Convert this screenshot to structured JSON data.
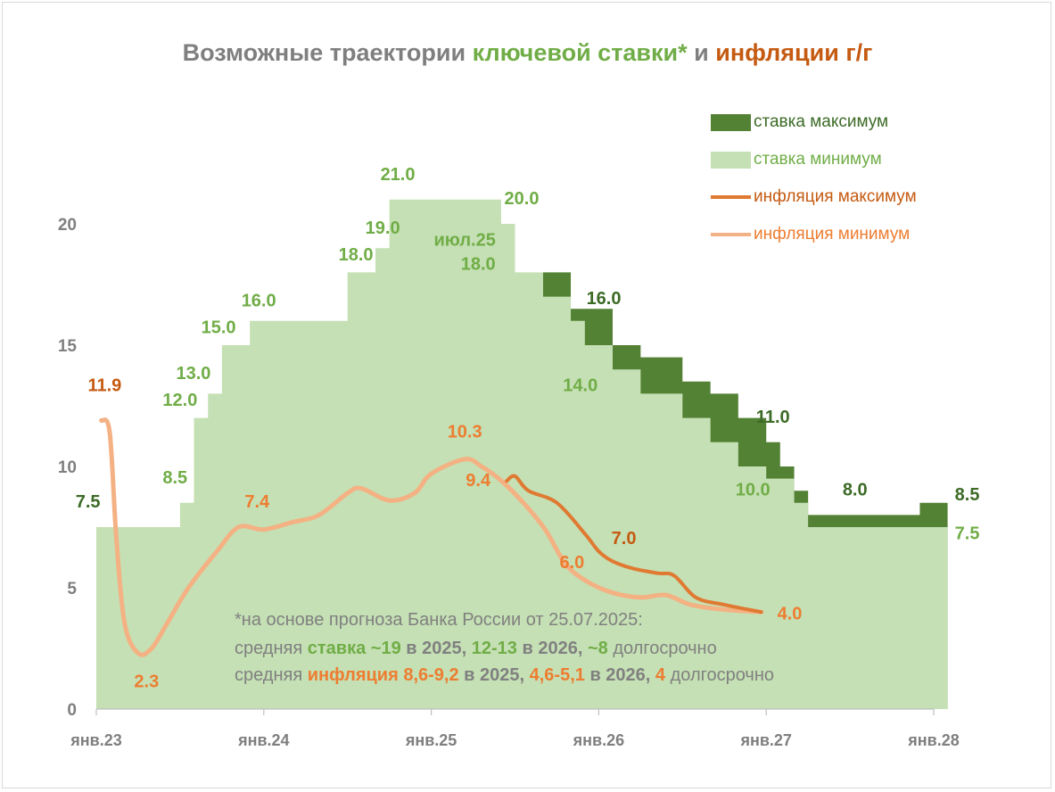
{
  "colors": {
    "rate_max": "#548235",
    "rate_min": "#c5e0b4",
    "infl_max": "#e07a32",
    "infl_min": "#f4b183",
    "label_green": "#70ad47",
    "label_dkgreen": "#3c6b26",
    "label_orange": "#ed7d31",
    "label_dkorange": "#c55a11",
    "axis": "#7f7f7f"
  },
  "title": {
    "part1": "Возможные траектории",
    "part2": "ключевой ставки*",
    "part3": "и",
    "part4": "инфляции г/г"
  },
  "legend": [
    {
      "label": "ставка максимум",
      "kind": "rect",
      "color": "#548235",
      "text_color": "#3c6b26"
    },
    {
      "label": "ставка минимум",
      "kind": "rect",
      "color": "#c5e0b4",
      "text_color": "#70ad47"
    },
    {
      "label": "инфляция максимум",
      "kind": "line",
      "color": "#e07a32",
      "text_color": "#c55a11"
    },
    {
      "label": "инфляция минимум",
      "kind": "line",
      "color": "#f4b183",
      "text_color": "#ed7d31"
    }
  ],
  "note": {
    "line1": "*на основе прогноза Банка России от 25.07.2025:",
    "l2_a": "средняя",
    "l2_b": "ставка",
    "l2_c": "~19",
    "l2_d": "в 2025,",
    "l2_e": "12-13",
    "l2_f": "в 2026,",
    "l2_g": "~8",
    "l2_h": "долгосрочно",
    "l3_a": "средняя",
    "l3_b": "инфляция",
    "l3_c": "8,6-9,2",
    "l3_d": "в 2025,",
    "l3_e": "4,6-5,1",
    "l3_f": "в 2026,",
    "l3_g": "4",
    "l3_h": "долгосрочно"
  },
  "chart_data": {
    "type": "area",
    "title": "Возможные траектории ключевой ставки* и инфляции г/г",
    "x_range": [
      2023.0,
      2028.0
    ],
    "ylim": [
      0,
      20
    ],
    "yticks": [
      0,
      5,
      10,
      15,
      20
    ],
    "xticks": [
      {
        "x": 2023.0,
        "label": "янв.23"
      },
      {
        "x": 2024.0,
        "label": "янв.24"
      },
      {
        "x": 2025.0,
        "label": "янв.25"
      },
      {
        "x": 2026.0,
        "label": "янв.26"
      },
      {
        "x": 2027.0,
        "label": "янв.27"
      },
      {
        "x": 2028.0,
        "label": "янв.28"
      }
    ],
    "series": [
      {
        "name": "ставка минимум",
        "kind": "step",
        "points": [
          [
            2023.0,
            7.5
          ],
          [
            2023.5,
            8.5
          ],
          [
            2023.583,
            12.0
          ],
          [
            2023.667,
            13.0
          ],
          [
            2023.75,
            15.0
          ],
          [
            2023.917,
            16.0
          ],
          [
            2024.5,
            18.0
          ],
          [
            2024.667,
            19.0
          ],
          [
            2024.75,
            21.0
          ],
          [
            2025.417,
            20.0
          ],
          [
            2025.5,
            18.0
          ],
          [
            2025.667,
            17.0
          ],
          [
            2025.833,
            16.0
          ],
          [
            2025.917,
            15.0
          ],
          [
            2026.083,
            14.0
          ],
          [
            2026.25,
            13.0
          ],
          [
            2026.5,
            12.0
          ],
          [
            2026.667,
            11.0
          ],
          [
            2026.833,
            10.0
          ],
          [
            2027.0,
            9.5
          ],
          [
            2027.167,
            8.5
          ],
          [
            2027.25,
            7.5
          ],
          [
            2027.917,
            7.5
          ],
          [
            2028.083,
            7.5
          ]
        ]
      },
      {
        "name": "ставка максимум",
        "kind": "step",
        "points": [
          [
            2025.667,
            18.0
          ],
          [
            2025.833,
            16.5
          ],
          [
            2025.917,
            16.5
          ],
          [
            2026.083,
            15.0
          ],
          [
            2026.25,
            14.5
          ],
          [
            2026.5,
            13.5
          ],
          [
            2026.667,
            13.0
          ],
          [
            2026.833,
            12.0
          ],
          [
            2027.0,
            11.0
          ],
          [
            2027.083,
            10.0
          ],
          [
            2027.167,
            9.0
          ],
          [
            2027.25,
            8.0
          ],
          [
            2027.917,
            8.5
          ],
          [
            2028.083,
            8.5
          ]
        ]
      },
      {
        "name": "инфляция минимум",
        "kind": "line",
        "points": [
          [
            2023.03,
            11.9
          ],
          [
            2023.08,
            11.4
          ],
          [
            2023.12,
            7.0
          ],
          [
            2023.17,
            3.5
          ],
          [
            2023.25,
            2.3
          ],
          [
            2023.33,
            2.5
          ],
          [
            2023.42,
            3.5
          ],
          [
            2023.55,
            5.0
          ],
          [
            2023.72,
            6.5
          ],
          [
            2023.85,
            7.5
          ],
          [
            2024.0,
            7.4
          ],
          [
            2024.17,
            7.7
          ],
          [
            2024.33,
            8.0
          ],
          [
            2024.5,
            8.9
          ],
          [
            2024.58,
            9.1
          ],
          [
            2024.75,
            8.6
          ],
          [
            2024.9,
            8.9
          ],
          [
            2025.0,
            9.7
          ],
          [
            2025.2,
            10.3
          ],
          [
            2025.3,
            10.0
          ],
          [
            2025.42,
            9.4
          ],
          [
            2025.55,
            8.5
          ],
          [
            2025.68,
            7.4
          ],
          [
            2025.8,
            6.0
          ],
          [
            2025.92,
            5.3
          ],
          [
            2026.08,
            4.8
          ],
          [
            2026.25,
            4.6
          ],
          [
            2026.4,
            4.7
          ],
          [
            2026.55,
            4.3
          ],
          [
            2026.75,
            4.1
          ],
          [
            2026.97,
            4.0
          ]
        ]
      },
      {
        "name": "инфляция максимум",
        "kind": "line",
        "points": [
          [
            2025.45,
            9.4
          ],
          [
            2025.5,
            9.6
          ],
          [
            2025.58,
            9.0
          ],
          [
            2025.75,
            8.5
          ],
          [
            2025.92,
            7.2
          ],
          [
            2026.0,
            6.5
          ],
          [
            2026.08,
            6.1
          ],
          [
            2026.2,
            5.8
          ],
          [
            2026.35,
            5.6
          ],
          [
            2026.45,
            5.5
          ],
          [
            2026.58,
            4.6
          ],
          [
            2026.75,
            4.3
          ],
          [
            2026.97,
            4.0
          ]
        ]
      }
    ],
    "annotations": [
      {
        "text": "11.9",
        "x": 2023.05,
        "y": 13.1,
        "color": "label_dkorange"
      },
      {
        "text": "7.5",
        "x": 2022.95,
        "y": 8.3,
        "color": "label_dkgreen"
      },
      {
        "text": "8.5",
        "x": 2023.47,
        "y": 9.3,
        "color": "label_green"
      },
      {
        "text": "12.0",
        "x": 2023.5,
        "y": 12.5,
        "color": "label_green"
      },
      {
        "text": "13.0",
        "x": 2023.58,
        "y": 13.6,
        "color": "label_green"
      },
      {
        "text": "15.0",
        "x": 2023.73,
        "y": 15.5,
        "color": "label_green"
      },
      {
        "text": "16.0",
        "x": 2023.97,
        "y": 16.6,
        "color": "label_green"
      },
      {
        "text": "18.0",
        "x": 2024.55,
        "y": 18.5,
        "color": "label_green"
      },
      {
        "text": "19.0",
        "x": 2024.71,
        "y": 19.6,
        "color": "label_green"
      },
      {
        "text": "21.0",
        "x": 2024.8,
        "y": 21.8,
        "color": "label_green"
      },
      {
        "text": "20.0",
        "x": 2025.54,
        "y": 20.8,
        "color": "label_green"
      },
      {
        "text": "июл.25",
        "x": 2025.2,
        "y": 19.1,
        "color": "label_green"
      },
      {
        "text": "18.0",
        "x": 2025.28,
        "y": 18.1,
        "color": "label_green"
      },
      {
        "text": "16.0",
        "x": 2026.03,
        "y": 16.7,
        "color": "label_dkgreen"
      },
      {
        "text": "14.0",
        "x": 2025.89,
        "y": 13.1,
        "color": "label_green"
      },
      {
        "text": "11.0",
        "x": 2027.04,
        "y": 11.8,
        "color": "label_dkgreen"
      },
      {
        "text": "10.0",
        "x": 2026.92,
        "y": 8.8,
        "color": "label_green"
      },
      {
        "text": "8.0",
        "x": 2027.53,
        "y": 8.8,
        "color": "label_dkgreen"
      },
      {
        "text": "8.5",
        "x": 2028.2,
        "y": 8.6,
        "color": "label_dkgreen"
      },
      {
        "text": "7.5",
        "x": 2028.2,
        "y": 7.0,
        "color": "label_green"
      },
      {
        "text": "7.4",
        "x": 2023.96,
        "y": 8.3,
        "color": "label_orange"
      },
      {
        "text": "2.3",
        "x": 2023.3,
        "y": 0.9,
        "color": "label_orange"
      },
      {
        "text": "10.3",
        "x": 2025.2,
        "y": 11.2,
        "color": "label_orange"
      },
      {
        "text": "9.4",
        "x": 2025.28,
        "y": 9.2,
        "color": "label_orange"
      },
      {
        "text": "7.0",
        "x": 2026.15,
        "y": 6.8,
        "color": "label_dkorange"
      },
      {
        "text": "6.0",
        "x": 2025.84,
        "y": 5.8,
        "color": "label_orange"
      },
      {
        "text": "4.0",
        "x": 2027.14,
        "y": 3.7,
        "color": "label_orange"
      }
    ]
  }
}
